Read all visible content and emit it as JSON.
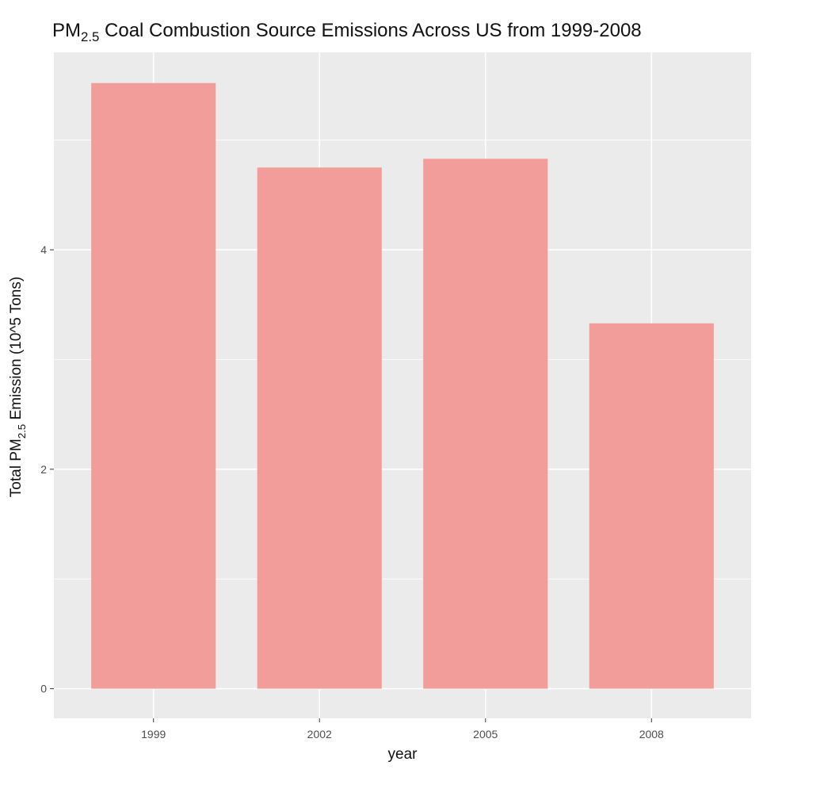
{
  "chart_data": {
    "type": "bar",
    "title": {
      "prefix": "PM",
      "subscript": "2.5",
      "suffix": " Coal Combustion Source Emissions Across US from 1999-2008"
    },
    "xlabel": "year",
    "ylabel": {
      "prefix": "Total PM",
      "subscript": "2.5",
      "suffix": " Emission (10^5 Tons)"
    },
    "categories": [
      "1999",
      "2002",
      "2005",
      "2008"
    ],
    "values": [
      5.52,
      4.75,
      4.83,
      3.33
    ],
    "ylim": [
      -0.27,
      5.8
    ],
    "y_ticks": [
      0,
      2,
      4
    ],
    "y_tick_labels": [
      "0",
      "2",
      "4"
    ],
    "grid": true,
    "bar_color": "#f29d99",
    "panel_color": "#ebebeb",
    "grid_color": "#ffffff",
    "legend": "none"
  }
}
